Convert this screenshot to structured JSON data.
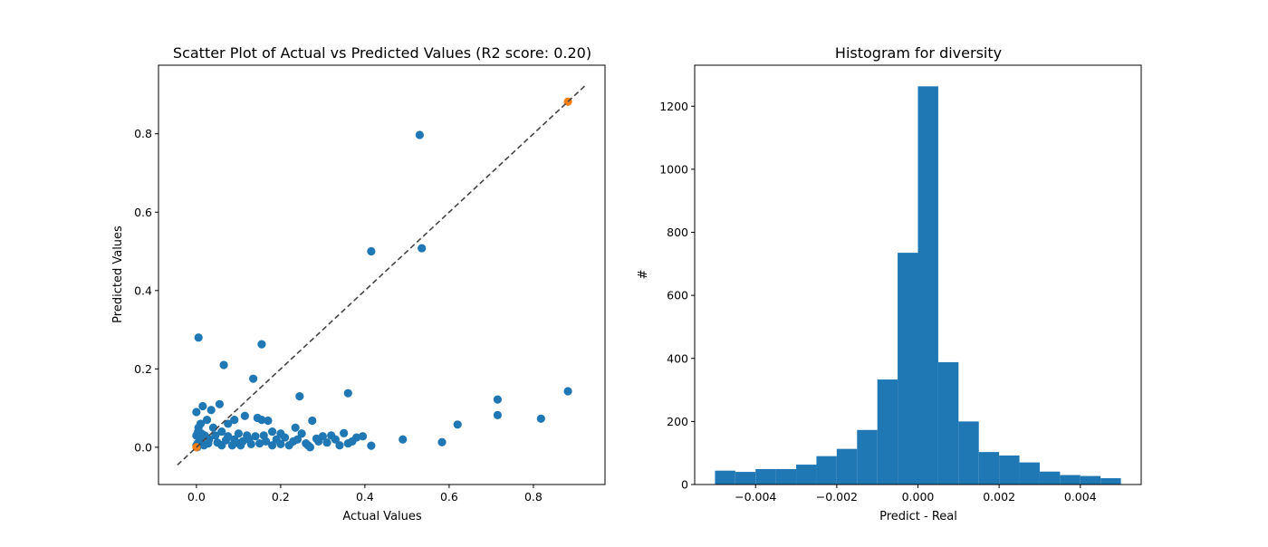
{
  "colors": {
    "series_blue": "#1f77b4",
    "series_orange": "#ff7f0e",
    "diagonal": "#444444"
  },
  "chart_data": [
    {
      "type": "scatter",
      "title": "Scatter Plot of Actual vs Predicted Values (R2 score: 0.20)",
      "xlabel": "Actual Values",
      "ylabel": "Predicted Values",
      "xlim": [
        -0.09,
        0.97
      ],
      "ylim": [
        -0.095,
        0.975
      ],
      "xticks": [
        0.0,
        0.2,
        0.4,
        0.6,
        0.8
      ],
      "xtick_labels": [
        "0.0",
        "0.2",
        "0.4",
        "0.6",
        "0.8"
      ],
      "yticks": [
        0.0,
        0.2,
        0.4,
        0.6,
        0.8
      ],
      "ytick_labels": [
        "0.0",
        "0.2",
        "0.4",
        "0.6",
        "0.8"
      ],
      "diagonal": {
        "style": "dashed",
        "from": [
          -0.045,
          -0.045
        ],
        "to": [
          0.925,
          0.925
        ]
      },
      "grid": false,
      "series": [
        {
          "color": "#1f77b4",
          "points": [
            [
              0.53,
              0.797
            ],
            [
              0.415,
              0.5
            ],
            [
              0.535,
              0.508
            ],
            [
              0.005,
              0.28
            ],
            [
              0.155,
              0.263
            ],
            [
              0.065,
              0.21
            ],
            [
              0.135,
              0.175
            ],
            [
              0.245,
              0.13
            ],
            [
              0.36,
              0.138
            ],
            [
              0.715,
              0.122
            ],
            [
              0.882,
              0.143
            ],
            [
              0.715,
              0.082
            ],
            [
              0.818,
              0.073
            ],
            [
              0.62,
              0.058
            ],
            [
              0.49,
              0.02
            ],
            [
              0.583,
              0.013
            ],
            [
              0.415,
              0.004
            ],
            [
              0.38,
              0.025
            ],
            [
              0.36,
              0.01
            ],
            [
              0.35,
              0.036
            ],
            [
              0.32,
              0.03
            ],
            [
              0.3,
              0.028
            ],
            [
              0.275,
              0.068
            ],
            [
              0.235,
              0.05
            ],
            [
              0.25,
              0.035
            ],
            [
              0.2,
              0.035
            ],
            [
              0.18,
              0.04
            ],
            [
              0.17,
              0.068
            ],
            [
              0.155,
              0.07
            ],
            [
              0.145,
              0.075
            ],
            [
              0.115,
              0.08
            ],
            [
              0.09,
              0.07
            ],
            [
              0.075,
              0.06
            ],
            [
              0.055,
              0.11
            ],
            [
              0.035,
              0.095
            ],
            [
              0.015,
              0.105
            ],
            [
              0.0,
              0.09
            ],
            [
              0.025,
              0.07
            ],
            [
              0.01,
              0.06
            ],
            [
              0.005,
              0.05
            ],
            [
              0.04,
              0.05
            ],
            [
              0.06,
              0.04
            ],
            [
              0.1,
              0.035
            ],
            [
              0.12,
              0.03
            ],
            [
              0.14,
              0.028
            ],
            [
              0.16,
              0.03
            ],
            [
              0.19,
              0.02
            ],
            [
              0.21,
              0.025
            ],
            [
              0.23,
              0.015
            ],
            [
              0.26,
              0.01
            ],
            [
              0.27,
              0.0
            ],
            [
              0.29,
              0.015
            ],
            [
              0.31,
              0.012
            ],
            [
              0.33,
              0.02
            ],
            [
              0.37,
              0.015
            ],
            [
              0.395,
              0.028
            ],
            [
              0.34,
              0.005
            ],
            [
              0.285,
              0.022
            ],
            [
              0.22,
              0.005
            ],
            [
              0.18,
              0.005
            ],
            [
              0.15,
              0.01
            ],
            [
              0.13,
              0.008
            ],
            [
              0.11,
              0.015
            ],
            [
              0.09,
              0.02
            ],
            [
              0.07,
              0.018
            ],
            [
              0.05,
              0.012
            ],
            [
              0.03,
              0.02
            ],
            [
              0.02,
              0.03
            ],
            [
              0.012,
              0.035
            ],
            [
              0.008,
              0.02
            ],
            [
              0.003,
              0.01
            ],
            [
              0.0,
              0.005
            ],
            [
              0.0,
              0.03
            ],
            [
              0.004,
              0.04
            ],
            [
              0.045,
              0.03
            ],
            [
              0.085,
              0.005
            ],
            [
              0.105,
              0.005
            ],
            [
              0.125,
              0.02
            ],
            [
              0.165,
              0.015
            ],
            [
              0.2,
              0.008
            ],
            [
              0.24,
              0.02
            ],
            [
              0.265,
              0.005
            ],
            [
              0.018,
              0.005
            ],
            [
              0.028,
              0.01
            ],
            [
              0.06,
              0.005
            ],
            [
              0.075,
              0.028
            ],
            [
              0.095,
              0.012
            ],
            [
              0.01,
              0.015
            ],
            [
              0.002,
              0.0
            ],
            [
              0.006,
              0.025
            ]
          ]
        },
        {
          "color": "#ff7f0e",
          "points": [
            [
              0.0,
              0.0
            ],
            [
              0.882,
              0.882
            ]
          ]
        }
      ]
    },
    {
      "type": "bar",
      "title": "Histogram for diversity",
      "xlabel": "Predict - Real",
      "ylabel": "#",
      "xlim": [
        -0.0055,
        0.0055
      ],
      "ylim": [
        0,
        1330
      ],
      "xticks": [
        -0.004,
        -0.002,
        0.0,
        0.002,
        0.004
      ],
      "xtick_labels": [
        "−0.004",
        "−0.002",
        "0.000",
        "0.002",
        "0.004"
      ],
      "yticks": [
        0,
        200,
        400,
        600,
        800,
        1000,
        1200
      ],
      "ytick_labels": [
        "0",
        "200",
        "400",
        "600",
        "800",
        "1000",
        "1200"
      ],
      "grid": false,
      "bin_edges": [
        -0.005,
        -0.0045,
        -0.004,
        -0.0035,
        -0.003,
        -0.0025,
        -0.002,
        -0.0015,
        -0.001,
        -0.0005,
        0.0,
        0.0005,
        0.001,
        0.0015,
        0.002,
        0.0025,
        0.003,
        0.0035,
        0.004,
        0.0045,
        0.005
      ],
      "values": [
        44,
        40,
        49,
        49,
        63,
        90,
        113,
        173,
        333,
        735,
        1263,
        388,
        200,
        103,
        92,
        70,
        41,
        30,
        27,
        20
      ],
      "color": "#1f77b4"
    }
  ]
}
